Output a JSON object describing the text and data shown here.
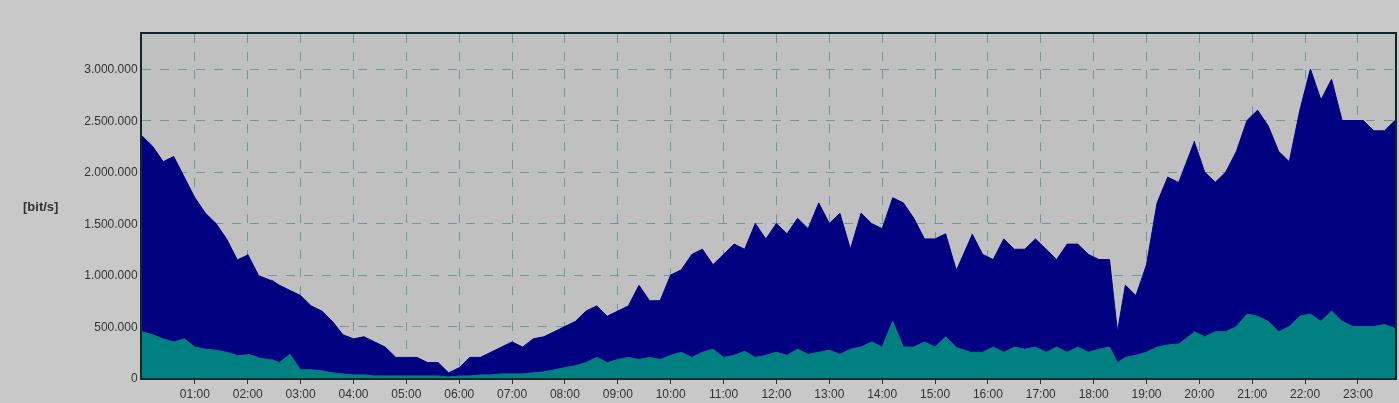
{
  "chart_data": {
    "type": "area",
    "ylabel": "[bit/s]",
    "x": [
      0,
      0.2,
      0.4,
      0.6,
      0.8,
      1.0,
      1.2,
      1.4,
      1.6,
      1.8,
      1.85,
      2.0,
      2.2,
      2.35,
      2.45,
      2.6,
      2.8,
      3.0,
      3.2,
      3.4,
      3.6,
      3.8,
      4.0,
      4.2,
      4.4,
      4.6,
      4.8,
      5.0,
      5.2,
      5.4,
      5.6,
      5.8,
      6.0,
      6.2,
      6.4,
      6.6,
      6.8,
      7.0,
      7.2,
      7.4,
      7.6,
      7.8,
      8.0,
      8.2,
      8.4,
      8.6,
      8.8,
      9.0,
      9.2,
      9.4,
      9.6,
      9.8,
      10.0,
      10.2,
      10.4,
      10.6,
      10.8,
      11.0,
      11.2,
      11.4,
      11.6,
      11.8,
      12.0,
      12.2,
      12.4,
      12.6,
      12.8,
      13.0,
      13.2,
      13.4,
      13.6,
      13.8,
      14.0,
      14.2,
      14.4,
      14.6,
      14.8,
      15.0,
      15.2,
      15.4,
      15.55,
      15.7,
      15.9,
      16.1,
      16.3,
      16.5,
      16.7,
      16.9,
      17.1,
      17.3,
      17.5,
      17.7,
      17.9,
      18.1,
      18.3,
      18.45,
      18.6,
      18.8,
      19.0,
      19.2,
      19.4,
      19.6,
      19.75,
      19.9,
      20.1,
      20.3,
      20.5,
      20.7,
      20.9,
      21.1,
      21.3,
      21.5,
      21.7,
      21.9,
      22.1,
      22.3,
      22.5,
      22.7,
      22.9,
      23.1,
      23.3,
      23.5,
      23.7
    ],
    "series": [
      {
        "color": "#000080",
        "values": [
          2350000,
          2250000,
          2100000,
          2150000,
          1950000,
          1750000,
          1600000,
          1500000,
          1350000,
          1150000,
          null,
          1200000,
          1000000,
          null,
          950000,
          900000,
          850000,
          800000,
          700000,
          650000,
          550000,
          420000,
          380000,
          400000,
          350000,
          300000,
          200000,
          200000,
          200000,
          150000,
          150000,
          50000,
          100000,
          200000,
          200000,
          250000,
          300000,
          350000,
          300000,
          380000,
          400000,
          450000,
          500000,
          550000,
          650000,
          700000,
          600000,
          650000,
          700000,
          900000,
          750000,
          750000,
          1000000,
          1050000,
          1200000,
          1250000,
          1100000,
          1200000,
          1300000,
          1250000,
          1500000,
          1350000,
          1500000,
          1400000,
          1550000,
          1450000,
          1700000,
          1500000,
          1600000,
          1250000,
          1600000,
          1500000,
          1450000,
          1750000,
          1700000,
          1550000,
          1350000,
          1350000,
          1400000,
          1050000,
          null,
          1400000,
          1200000,
          1150000,
          1350000,
          1250000,
          1250000,
          1350000,
          1250000,
          1150000,
          1300000,
          1300000,
          1200000,
          1150000,
          1150000,
          450000,
          900000,
          800000,
          1100000,
          1700000,
          1950000,
          1900000,
          null,
          2300000,
          2000000,
          1900000,
          2000000,
          2200000,
          2500000,
          2600000,
          2450000,
          2200000,
          2100000,
          2600000,
          3000000,
          2700000,
          2900000,
          2500000,
          2500000,
          2500000,
          2400000,
          2400000,
          2500000
        ]
      },
      {
        "color": "#008080",
        "values": [
          450000,
          420000,
          380000,
          350000,
          380000,
          300000,
          280000,
          270000,
          250000,
          220000,
          null,
          230000,
          200000,
          null,
          180000,
          150000,
          230000,
          80000,
          80000,
          70000,
          50000,
          40000,
          30000,
          30000,
          20000,
          20000,
          20000,
          20000,
          20000,
          20000,
          20000,
          10000,
          20000,
          20000,
          30000,
          30000,
          40000,
          40000,
          40000,
          50000,
          60000,
          80000,
          100000,
          120000,
          150000,
          200000,
          150000,
          180000,
          200000,
          180000,
          200000,
          180000,
          220000,
          250000,
          200000,
          250000,
          280000,
          200000,
          220000,
          260000,
          200000,
          220000,
          250000,
          220000,
          280000,
          230000,
          250000,
          270000,
          230000,
          280000,
          300000,
          350000,
          300000,
          550000,
          300000,
          300000,
          350000,
          300000,
          400000,
          300000,
          null,
          250000,
          250000,
          300000,
          250000,
          300000,
          280000,
          300000,
          250000,
          300000,
          250000,
          300000,
          250000,
          280000,
          300000,
          150000,
          200000,
          220000,
          250000,
          300000,
          320000,
          330000,
          null,
          450000,
          400000,
          450000,
          450000,
          500000,
          620000,
          600000,
          550000,
          450000,
          500000,
          600000,
          620000,
          550000,
          650000,
          550000,
          500000,
          500000,
          500000,
          520000,
          480000
        ]
      }
    ],
    "xlim": [
      0,
      23.7
    ],
    "xticks": [
      {
        "value": 1,
        "label": "01:00"
      },
      {
        "value": 2,
        "label": "02:00"
      },
      {
        "value": 3,
        "label": "03:00"
      },
      {
        "value": 4,
        "label": "04:00"
      },
      {
        "value": 5,
        "label": "05:00"
      },
      {
        "value": 6,
        "label": "06:00"
      },
      {
        "value": 7,
        "label": "07:00"
      },
      {
        "value": 8,
        "label": "08:00"
      },
      {
        "value": 9,
        "label": "09:00"
      },
      {
        "value": 10,
        "label": "10:00"
      },
      {
        "value": 11,
        "label": "11:00"
      },
      {
        "value": 12,
        "label": "12:00"
      },
      {
        "value": 13,
        "label": "13:00"
      },
      {
        "value": 14,
        "label": "14:00"
      },
      {
        "value": 15,
        "label": "15:00"
      },
      {
        "value": 16,
        "label": "16:00"
      },
      {
        "value": 17,
        "label": "17:00"
      },
      {
        "value": 18,
        "label": "18:00"
      },
      {
        "value": 19,
        "label": "19:00"
      },
      {
        "value": 20,
        "label": "20:00"
      },
      {
        "value": 21,
        "label": "21:00"
      },
      {
        "value": 22,
        "label": "22:00"
      },
      {
        "value": 23,
        "label": "23:00"
      }
    ],
    "ylim": [
      0,
      3340000
    ],
    "yticks": [
      0,
      {
        "value": 500000,
        "label": "500.000"
      },
      {
        "value": 1000000,
        "label": "1.000.000"
      },
      {
        "value": 1500000,
        "label": "1.500.000"
      },
      {
        "value": 2000000,
        "label": "2.000.000"
      },
      {
        "value": 2500000,
        "label": "2.500.000"
      },
      {
        "value": 3000000,
        "label": "3.000.000"
      }
    ],
    "grid": true
  }
}
